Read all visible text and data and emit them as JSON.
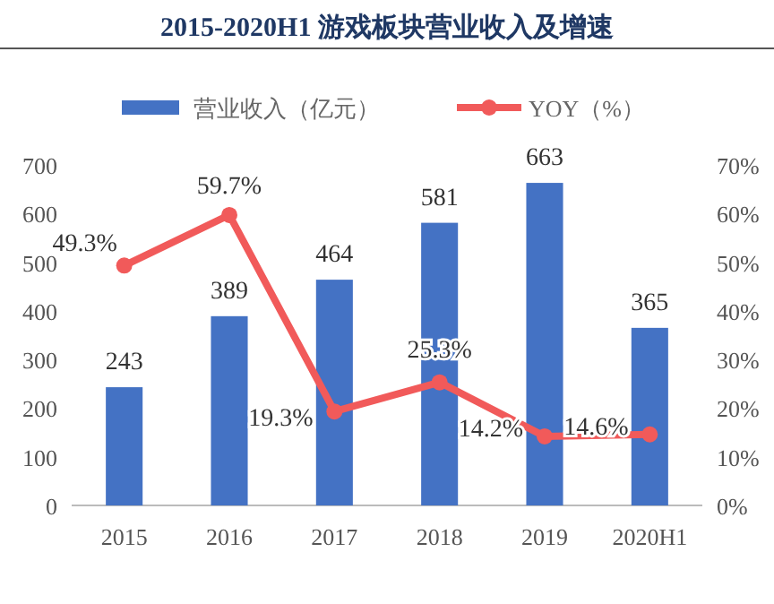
{
  "chart_data": {
    "type": "bar",
    "title": "2015-2020H1 游戏板块营业收入及增速",
    "categories": [
      "2015",
      "2016",
      "2017",
      "2018",
      "2019",
      "2020H1"
    ],
    "series": [
      {
        "name": "营业收入（亿元）",
        "color": "#4472c4",
        "values": [
          243,
          389,
          464,
          581,
          663,
          365
        ],
        "value_labels": [
          "243",
          "389",
          "464",
          "581",
          "663",
          "365"
        ]
      },
      {
        "name": "YOY（%）",
        "type": "line",
        "axis": "y2",
        "color": "#f15a5a",
        "marker": "circle",
        "values": [
          49.3,
          59.7,
          19.3,
          25.3,
          14.2,
          14.6
        ],
        "value_labels": [
          "49.3%",
          "59.7%",
          "19.3%",
          "25.3%",
          "14.2%",
          "14.6%"
        ]
      }
    ],
    "ylim": [
      0,
      700
    ],
    "yticks": [
      0,
      100,
      200,
      300,
      400,
      500,
      600,
      700
    ],
    "y2lim": [
      0,
      70
    ],
    "y2ticks": [
      {
        "value": 0,
        "label": "0%"
      },
      {
        "value": 10,
        "label": "10%"
      },
      {
        "value": 20,
        "label": "20%"
      },
      {
        "value": 30,
        "label": "30%"
      },
      {
        "value": 40,
        "label": "40%"
      },
      {
        "value": 50,
        "label": "50%"
      },
      {
        "value": 60,
        "label": "60%"
      },
      {
        "value": 70,
        "label": "70%"
      }
    ],
    "grid": false,
    "legend": "top"
  }
}
